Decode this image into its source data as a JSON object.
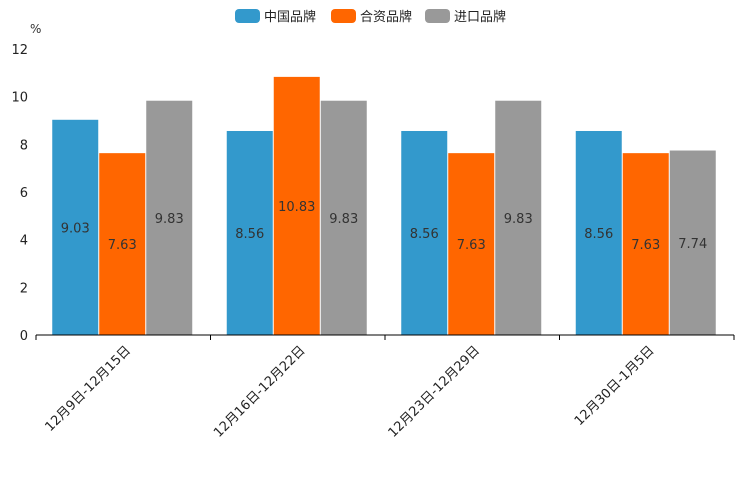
{
  "chart_data": {
    "type": "bar",
    "unit": "%",
    "categories": [
      "12月9日-12月15日",
      "12月16日-12月22日",
      "12月23日-12月29日",
      "12月30日-1月5日"
    ],
    "series": [
      {
        "name": "中国品牌",
        "color": "#3399cc",
        "values": [
          9.03,
          8.56,
          8.56,
          8.56
        ]
      },
      {
        "name": "合资品牌",
        "color": "#ff6600",
        "values": [
          7.63,
          10.83,
          7.63,
          7.63
        ]
      },
      {
        "name": "进口品牌",
        "color": "#999999",
        "values": [
          9.83,
          9.83,
          9.83,
          7.74
        ]
      }
    ],
    "ylim": [
      0,
      12
    ],
    "yticks": [
      0,
      2,
      4,
      6,
      8,
      10,
      12
    ],
    "legend_position": "top-center",
    "grid": false
  }
}
